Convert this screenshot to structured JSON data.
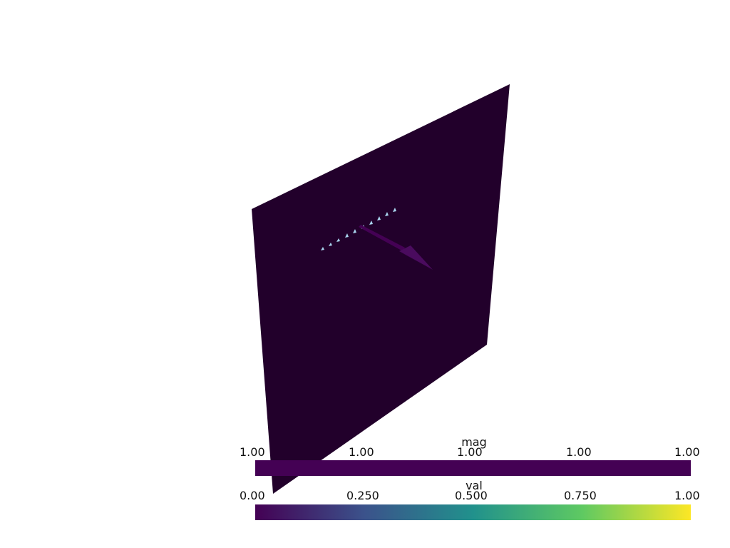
{
  "scene": {
    "plane_color": "#22002b",
    "arrow_color": "#440154",
    "marker_color": "#a9d4ee",
    "marker_count": 10
  },
  "colorbars": [
    {
      "title": "mag",
      "ticks": [
        "1.00",
        "1.00",
        "1.00",
        "1.00",
        "1.00"
      ],
      "colors": [
        "#440154",
        "#440154"
      ]
    },
    {
      "title": "val",
      "ticks": [
        "0.00",
        "0.250",
        "0.500",
        "0.750",
        "1.00"
      ],
      "colors": [
        "#440154",
        "#3b528b",
        "#21918c",
        "#5ec962",
        "#fde725"
      ]
    }
  ]
}
